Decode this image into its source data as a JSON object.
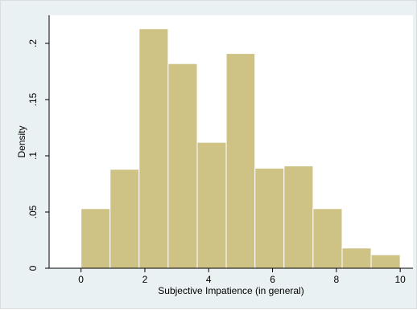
{
  "chart_data": {
    "type": "bar",
    "subtype": "histogram",
    "xlabel": "Subjective Impatience (in general)",
    "ylabel": "Density",
    "xlim": [
      -1.0,
      10.4
    ],
    "ylim": [
      0,
      0.225
    ],
    "x_ticks": [
      0,
      2,
      4,
      6,
      8,
      10
    ],
    "x_tick_labels": [
      "0",
      "2",
      "4",
      "6",
      "8",
      "10"
    ],
    "y_ticks": [
      0,
      0.05,
      0.1,
      0.15,
      0.2
    ],
    "y_tick_labels": [
      "0",
      ".05",
      ".1",
      ".15",
      ".2"
    ],
    "bins": [
      {
        "x0": 0.0,
        "x1": 0.91,
        "density": 0.053
      },
      {
        "x0": 0.91,
        "x1": 1.82,
        "density": 0.088
      },
      {
        "x0": 1.82,
        "x1": 2.73,
        "density": 0.213
      },
      {
        "x0": 2.73,
        "x1": 3.64,
        "density": 0.182
      },
      {
        "x0": 3.64,
        "x1": 4.55,
        "density": 0.112
      },
      {
        "x0": 4.55,
        "x1": 5.45,
        "density": 0.191
      },
      {
        "x0": 5.45,
        "x1": 6.36,
        "density": 0.089
      },
      {
        "x0": 6.36,
        "x1": 7.27,
        "density": 0.091
      },
      {
        "x0": 7.27,
        "x1": 8.18,
        "density": 0.053
      },
      {
        "x0": 8.18,
        "x1": 9.09,
        "density": 0.018
      },
      {
        "x0": 9.09,
        "x1": 10.0,
        "density": 0.012
      }
    ],
    "bar_color": "#cfc285",
    "bar_edge_color": "#ffffff",
    "plot_background": "#ffffff",
    "outer_background": "#eaf1f3",
    "grid": false,
    "legend": false
  }
}
